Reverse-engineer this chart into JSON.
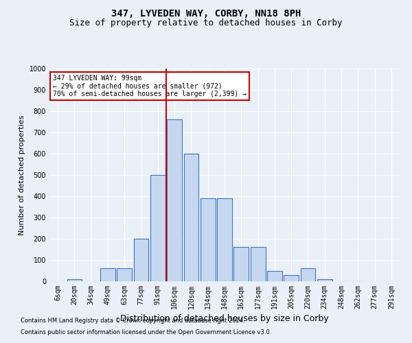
{
  "title": "347, LYVEDEN WAY, CORBY, NN18 8PH",
  "subtitle": "Size of property relative to detached houses in Corby",
  "xlabel": "Distribution of detached houses by size in Corby",
  "ylabel": "Number of detached properties",
  "footer1": "Contains HM Land Registry data © Crown copyright and database right 2024.",
  "footer2": "Contains public sector information licensed under the Open Government Licence v3.0.",
  "categories": [
    "6sqm",
    "20sqm",
    "34sqm",
    "49sqm",
    "63sqm",
    "77sqm",
    "91sqm",
    "106sqm",
    "120sqm",
    "134sqm",
    "148sqm",
    "163sqm",
    "177sqm",
    "191sqm",
    "205sqm",
    "220sqm",
    "234sqm",
    "248sqm",
    "262sqm",
    "277sqm",
    "291sqm"
  ],
  "values": [
    0,
    10,
    0,
    60,
    60,
    200,
    500,
    760,
    600,
    390,
    390,
    160,
    160,
    50,
    30,
    60,
    10,
    0,
    0,
    0,
    0
  ],
  "bar_color": "#c5d8f0",
  "bar_edge_color": "#4472c4",
  "vline_color": "#cc0000",
  "vline_pos": 6.5,
  "annotation_text": "347 LYVEDEN WAY: 99sqm\n← 29% of detached houses are smaller (972)\n70% of semi-detached houses are larger (2,399) →",
  "annotation_box_color": "#ffffff",
  "annotation_box_edge": "#cc0000",
  "ylim": [
    0,
    1000
  ],
  "yticks": [
    0,
    100,
    200,
    300,
    400,
    500,
    600,
    700,
    800,
    900,
    1000
  ],
  "bg_color": "#eaf0f8",
  "plot_bg_color": "#eaf0f8",
  "grid_color": "#ffffff",
  "title_fontsize": 10,
  "subtitle_fontsize": 9,
  "ylabel_fontsize": 8,
  "xlabel_fontsize": 9,
  "tick_fontsize": 7,
  "annotation_fontsize": 7,
  "footer_fontsize": 6
}
